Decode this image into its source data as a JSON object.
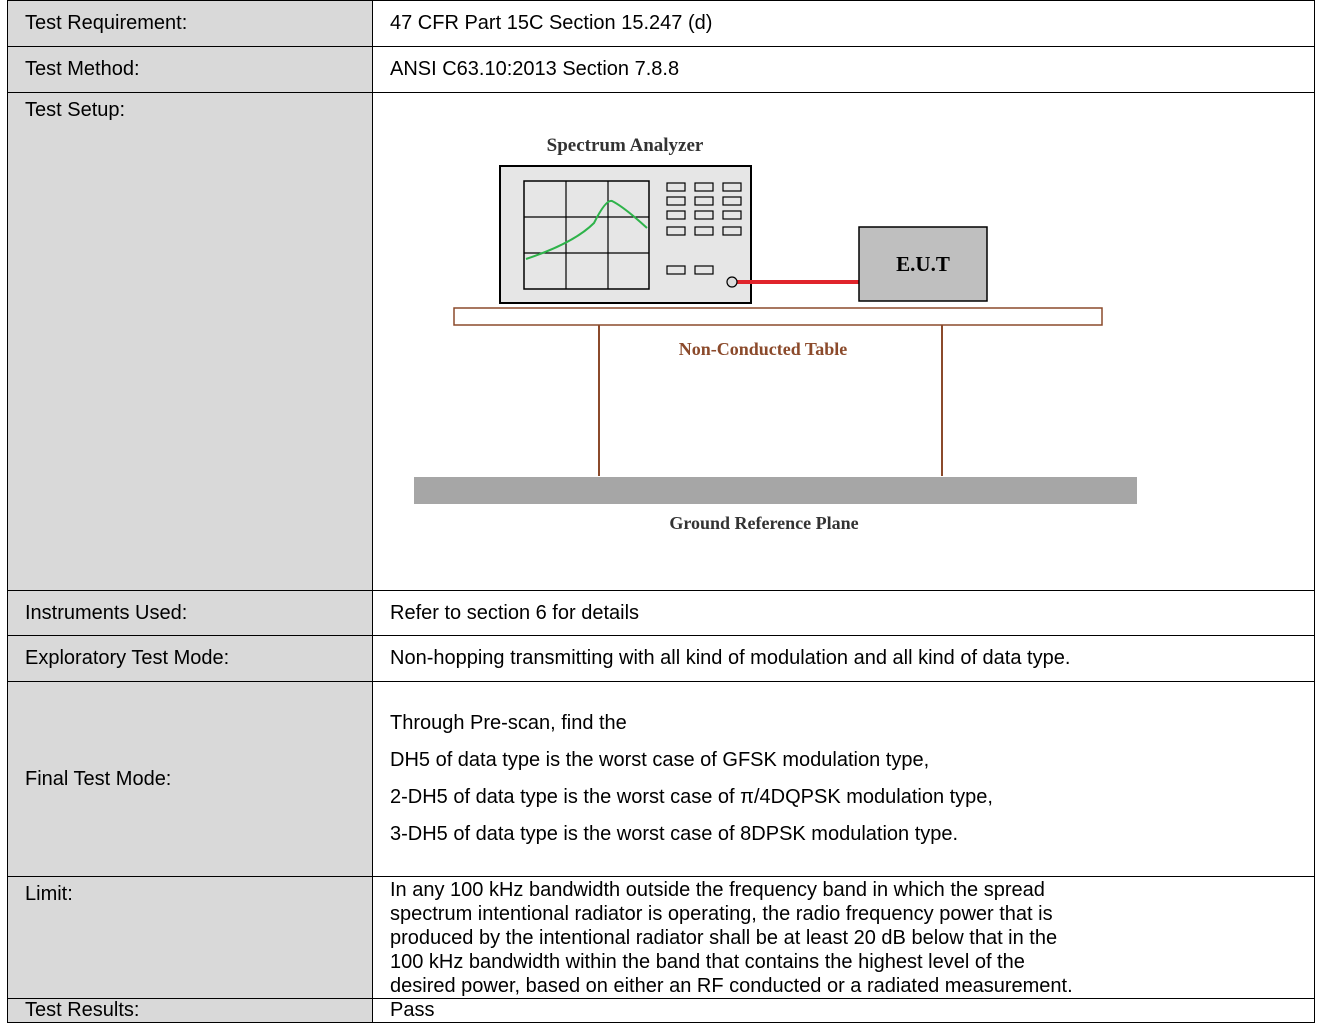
{
  "table": {
    "rows": [
      {
        "label": "Test Requirement:",
        "value": "47 CFR Part 15C Section 15.247 (d)"
      },
      {
        "label": "Test Method:",
        "value": "ANSI C63.10:2013 Section 7.8.8"
      },
      {
        "label": "Test Setup:",
        "diagram": {
          "analyzer_label": "Spectrum Analyzer",
          "eut_label": "E.U.T",
          "table_label": "Non-Conducted Table",
          "ground_label": "Ground Reference Plane"
        }
      },
      {
        "label": "Instruments Used:",
        "value": "Refer to section 6 for details"
      },
      {
        "label": "Exploratory Test Mode:",
        "value": "Non-hopping transmitting with all kind of modulation and all kind of data type."
      },
      {
        "label": "Final Test Mode:",
        "lines": [
          "Through Pre-scan, find the",
          "DH5 of data type is the worst case of GFSK modulation type,",
          "2-DH5 of data type is the worst case of π/4DQPSK modulation type,",
          "3-DH5 of data type is the worst case of 8DPSK modulation type."
        ]
      },
      {
        "label": "Limit:",
        "lines": [
          "In any 100 kHz bandwidth outside the frequency band in which the spread",
          "spectrum intentional radiator is operating, the radio frequency power that is",
          "produced by the intentional radiator shall be at least 20 dB below that in the",
          "100 kHz bandwidth within the band that contains the highest level of the",
          "desired power, based on either an RF conducted or a radiated measurement."
        ]
      },
      {
        "label": "Test Results:",
        "value": "Pass"
      }
    ]
  }
}
